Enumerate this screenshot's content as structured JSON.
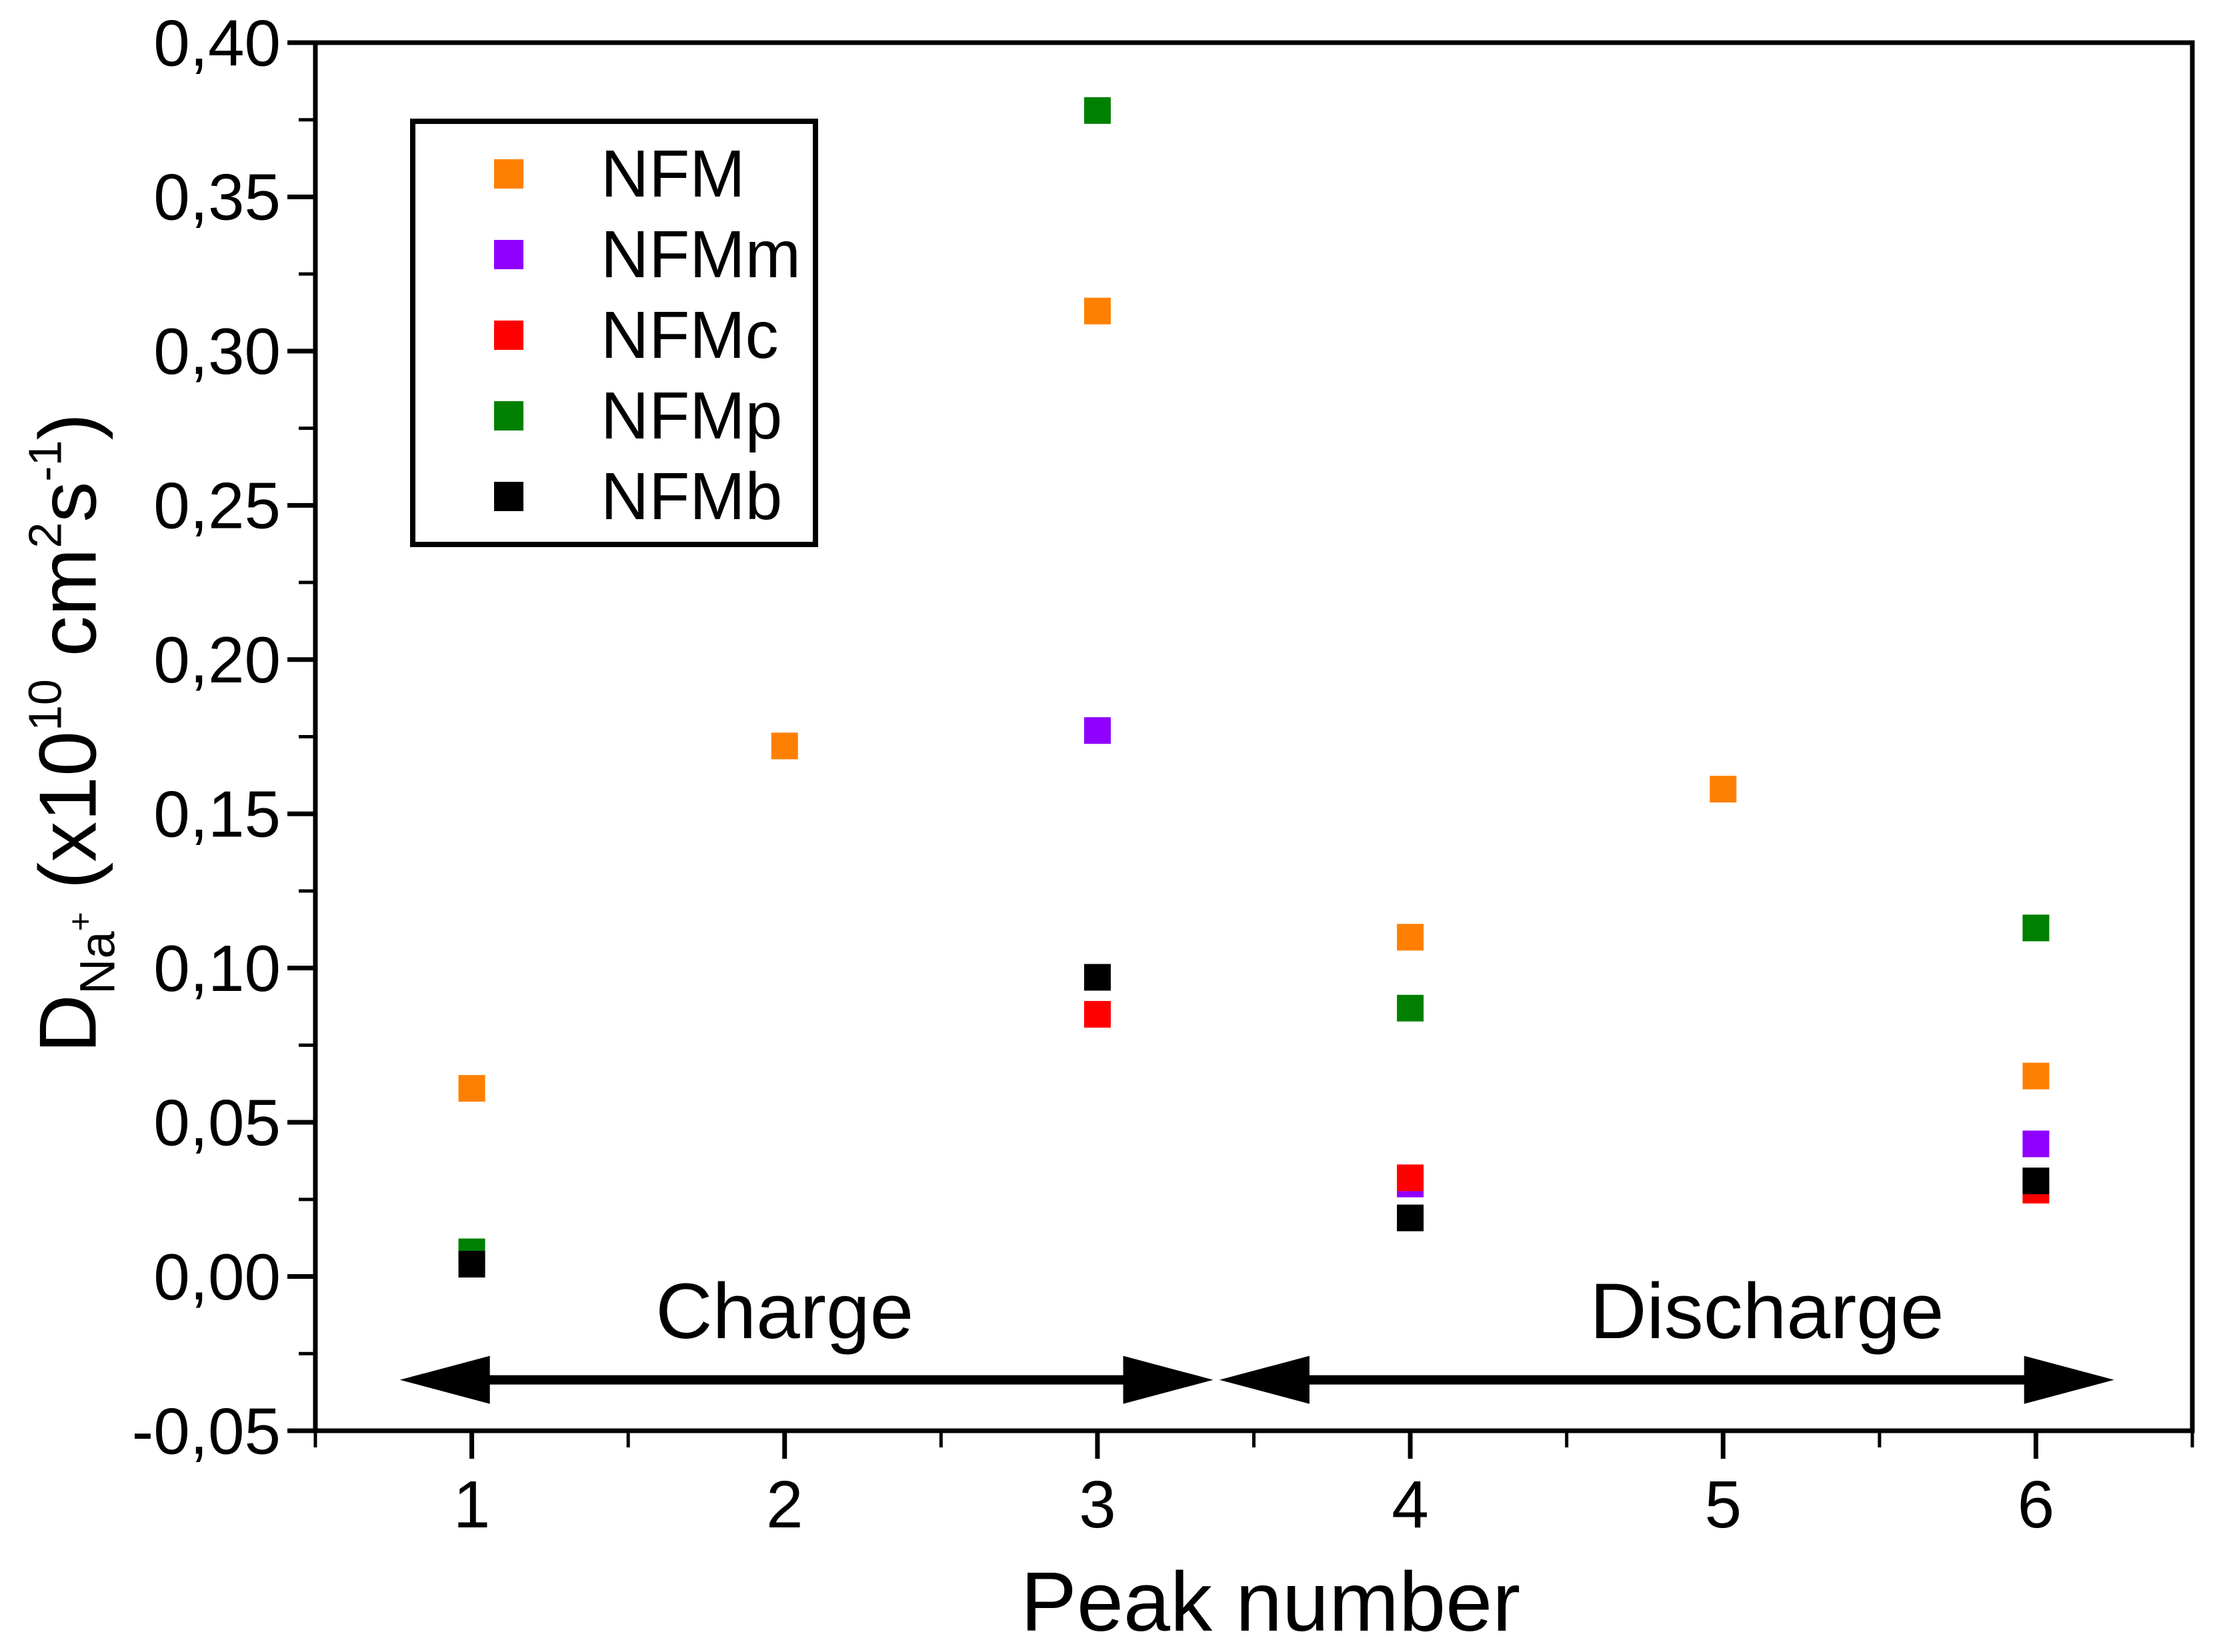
{
  "figure": {
    "background": "#FFFFFF",
    "text_color": "#000000"
  },
  "chart_data": {
    "type": "scatter",
    "title": "",
    "xlabel": "Peak number",
    "ylabel": "D_{Na+} (x10^{10} cm^{2}s^{-1})",
    "ylabel_parts": {
      "base": "D",
      "subscript": "Na",
      "subscript_sup": "+",
      "open": " (x10",
      "exp": "10",
      "unit_cm": " cm",
      "exp_cm": "2",
      "unit_s": "s",
      "exp_s": "-1",
      "close": ")"
    },
    "xlim": [
      0.5,
      6.5
    ],
    "ylim": [
      -0.05,
      0.4
    ],
    "grid": false,
    "marker": "square",
    "marker_size_px": 40,
    "xticks": [
      {
        "v": 1,
        "label": "1"
      },
      {
        "v": 2,
        "label": "2"
      },
      {
        "v": 3,
        "label": "3"
      },
      {
        "v": 4,
        "label": "4"
      },
      {
        "v": 5,
        "label": "5"
      },
      {
        "v": 6,
        "label": "6"
      }
    ],
    "x_minor_ticks": [
      0.5,
      1.5,
      2.5,
      3.5,
      4.5,
      5.5,
      6.5
    ],
    "yticks": [
      {
        "v": 0.4,
        "label": "0,40"
      },
      {
        "v": 0.35,
        "label": "0,35"
      },
      {
        "v": 0.3,
        "label": "0,30"
      },
      {
        "v": 0.25,
        "label": "0,25"
      },
      {
        "v": 0.2,
        "label": "0,20"
      },
      {
        "v": 0.15,
        "label": "0,15"
      },
      {
        "v": 0.1,
        "label": "0,10"
      },
      {
        "v": 0.05,
        "label": "0,05"
      },
      {
        "v": 0.0,
        "label": "0,00"
      },
      {
        "v": -0.05,
        "label": "-0,05"
      }
    ],
    "y_minor_ticks": [
      -0.025,
      0.025,
      0.075,
      0.125,
      0.175,
      0.225,
      0.275,
      0.325,
      0.375
    ],
    "legend": {
      "position": "upper-left"
    },
    "series": [
      {
        "name": "NFM",
        "color": "#FF8000",
        "points": [
          [
            1,
            0.061
          ],
          [
            2,
            0.172
          ],
          [
            3,
            0.313
          ],
          [
            4,
            0.11
          ],
          [
            5,
            0.158
          ],
          [
            6,
            0.065
          ]
        ]
      },
      {
        "name": "NFMm",
        "color": "#9000FF",
        "points": [
          [
            3,
            0.177
          ],
          [
            4,
            0.03
          ],
          [
            6,
            0.043
          ]
        ]
      },
      {
        "name": "NFMc",
        "color": "#FF0000",
        "points": [
          [
            3,
            0.085
          ],
          [
            4,
            0.032
          ],
          [
            6,
            0.028
          ]
        ]
      },
      {
        "name": "NFMp",
        "color": "#008000",
        "points": [
          [
            1,
            0.008
          ],
          [
            3,
            0.378
          ],
          [
            4,
            0.087
          ],
          [
            6,
            0.113
          ]
        ]
      },
      {
        "name": "NFMb",
        "color": "#000000",
        "points": [
          [
            1,
            0.004
          ],
          [
            3,
            0.097
          ],
          [
            4,
            0.019
          ],
          [
            6,
            0.031
          ]
        ]
      }
    ],
    "annotations": [
      {
        "text": "Charge",
        "x": 2.0,
        "y": -0.011
      },
      {
        "text": "Discharge",
        "x": 5.14,
        "y": -0.011
      }
    ],
    "arrows": [
      {
        "x1": 0.77,
        "x2": 3.37,
        "y": -0.0335,
        "heads": "both"
      },
      {
        "x1": 3.39,
        "x2": 6.25,
        "y": -0.0335,
        "heads": "both"
      }
    ]
  }
}
